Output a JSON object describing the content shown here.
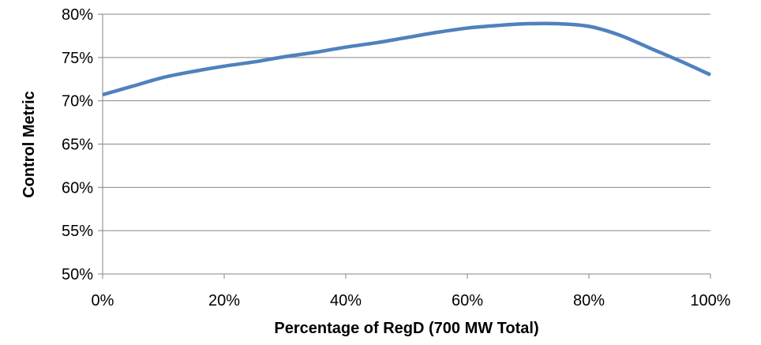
{
  "chart_data": {
    "type": "line",
    "title": "",
    "xlabel": "Percentage of RegD (700 MW Total)",
    "ylabel": "Control Metric",
    "x_ticks": [
      "0%",
      "20%",
      "40%",
      "60%",
      "80%",
      "100%"
    ],
    "y_ticks": [
      "50%",
      "55%",
      "60%",
      "65%",
      "70%",
      "75%",
      "80%"
    ],
    "xlim": [
      0,
      100
    ],
    "ylim": [
      50,
      80
    ],
    "grid": "horizontal",
    "legend": "none",
    "series": [
      {
        "color": "#4f81bd",
        "x": [
          0,
          5,
          10,
          15,
          20,
          25,
          30,
          35,
          40,
          45,
          50,
          55,
          60,
          65,
          70,
          75,
          80,
          85,
          90,
          95,
          100
        ],
        "y": [
          70.7,
          71.7,
          72.7,
          73.4,
          74.0,
          74.5,
          75.1,
          75.6,
          76.2,
          76.7,
          77.3,
          77.9,
          78.4,
          78.7,
          78.9,
          78.9,
          78.6,
          77.6,
          76.1,
          74.6,
          73.0
        ]
      }
    ]
  }
}
